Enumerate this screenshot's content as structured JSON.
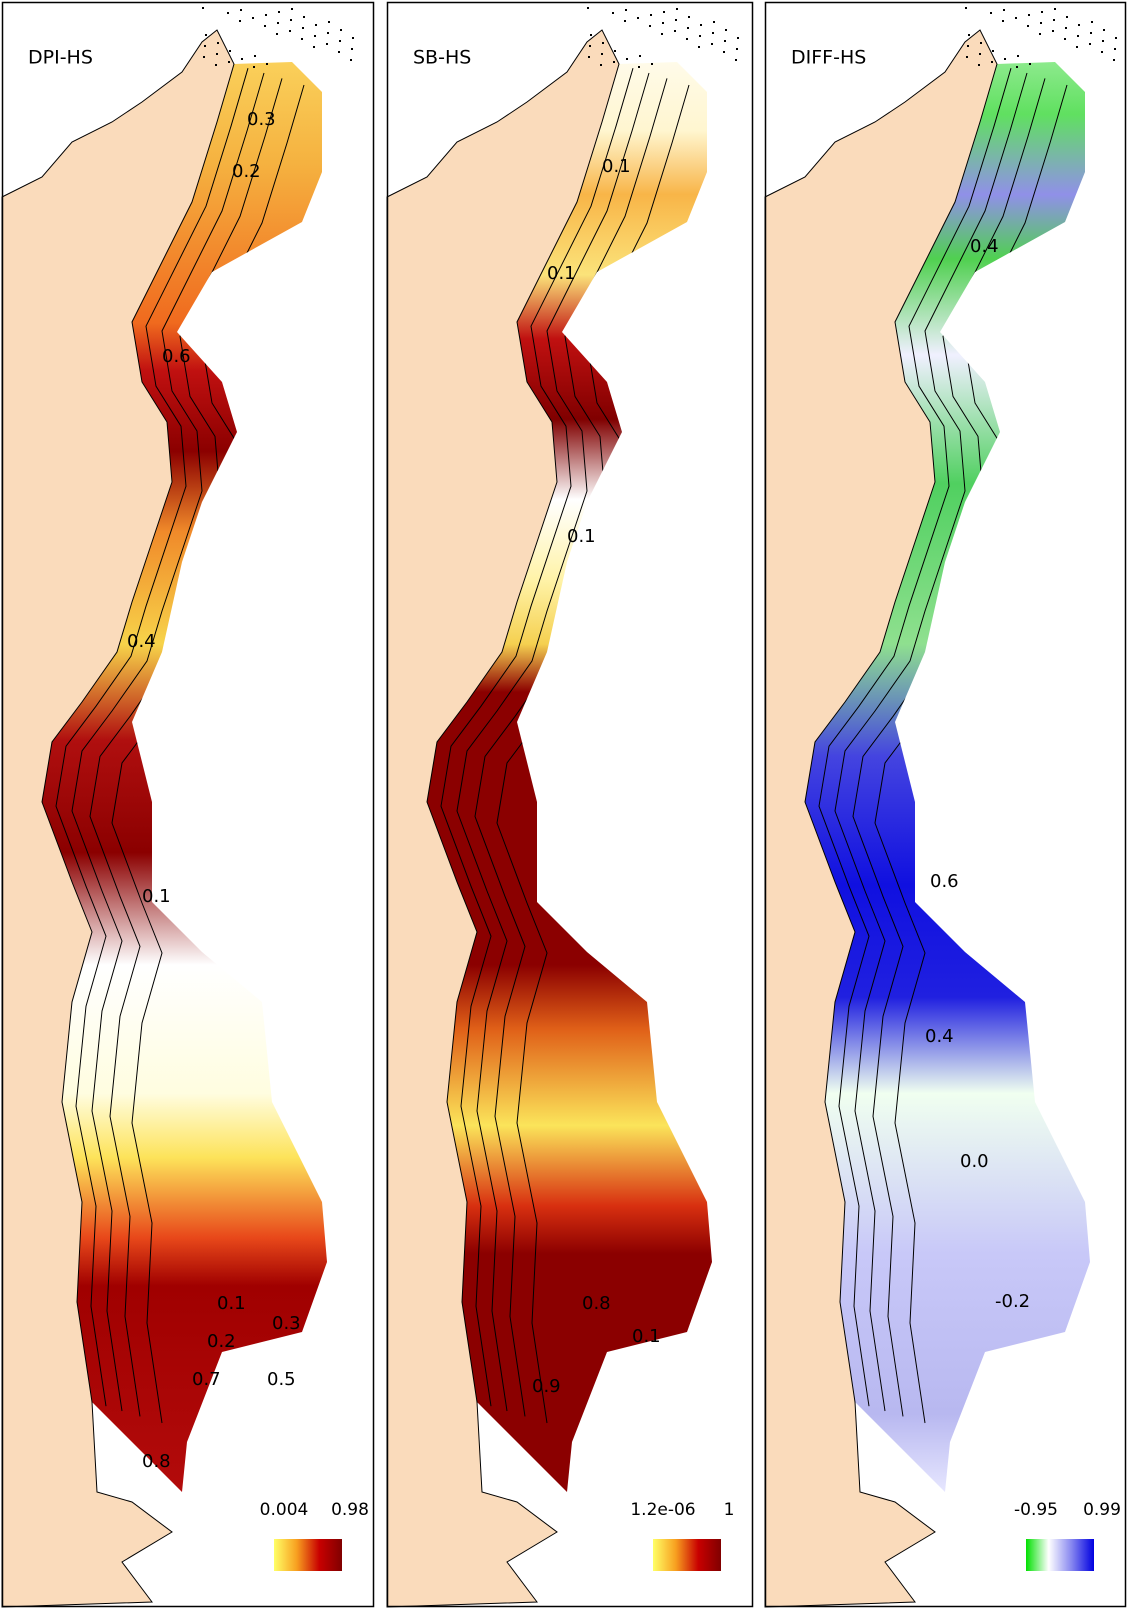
{
  "panels": [
    {
      "title": "DPI-HS",
      "legend": {
        "min": "0.004",
        "max": "0.98"
      },
      "contour_labels": [
        "0.3",
        "0.2",
        "0.6",
        "0.4",
        "0.1",
        "0.1",
        "0.3",
        "0.2",
        "0.5",
        "0.7",
        "0.8"
      ]
    },
    {
      "title": "SB-HS",
      "legend": {
        "min": "1.2e-06",
        "max": "1"
      },
      "contour_labels": [
        "0.1",
        "0.1",
        "0.1",
        "0.8",
        "0.9",
        "0.1"
      ]
    },
    {
      "title": "DIFF-HS",
      "legend": {
        "min": "-0.95",
        "max": "0.99"
      },
      "contour_labels": [
        "0.4",
        "0.6",
        "0.4",
        "0.0",
        "-0.2"
      ]
    }
  ]
}
